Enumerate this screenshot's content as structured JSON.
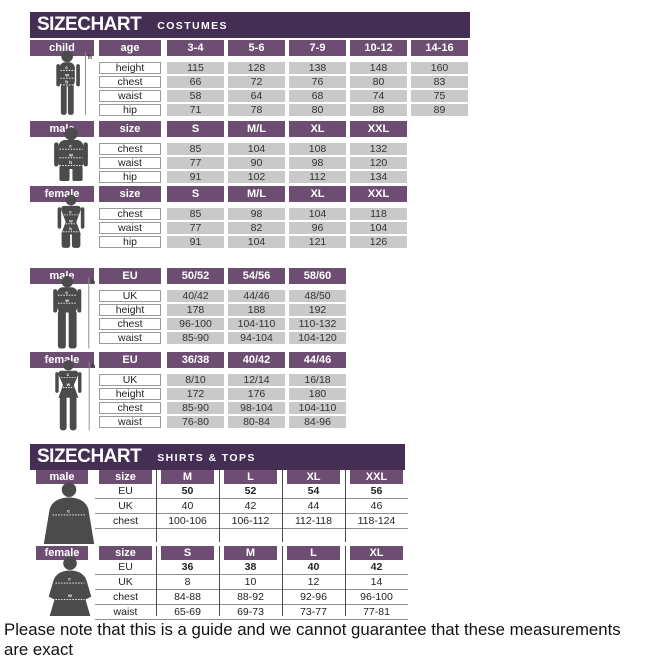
{
  "colors": {
    "banner": "#452e53",
    "pill": "#6d4e72",
    "cell_gray": "#c9c9c9",
    "silhouette": "#4b4b4b"
  },
  "sections": [
    {
      "title": "SIZECHART",
      "subtitle": "COSTUMES"
    },
    {
      "title": "SIZECHART",
      "subtitle": "SHIRTS & TOPS"
    }
  ],
  "markers": {
    "c": "c",
    "w": "w",
    "h": "h"
  },
  "footer_note": "Please note that this is a guide and we cannot guarantee that these measurements are exact",
  "chart_data": [
    {
      "type": "table",
      "section": "COSTUMES",
      "gender": "child",
      "key_label": "age",
      "columns": [
        "3-4",
        "5-6",
        "7-9",
        "10-12",
        "14-16"
      ],
      "rows": [
        {
          "label": "height",
          "values": [
            "115",
            "128",
            "138",
            "148",
            "160"
          ]
        },
        {
          "label": "chest",
          "values": [
            "66",
            "72",
            "76",
            "80",
            "83"
          ]
        },
        {
          "label": "waist",
          "values": [
            "58",
            "64",
            "68",
            "74",
            "75"
          ]
        },
        {
          "label": "hip",
          "values": [
            "71",
            "78",
            "80",
            "88",
            "89"
          ]
        }
      ]
    },
    {
      "type": "table",
      "section": "COSTUMES",
      "gender": "male",
      "key_label": "size",
      "columns": [
        "S",
        "M/L",
        "XL",
        "XXL"
      ],
      "rows": [
        {
          "label": "chest",
          "values": [
            "85",
            "104",
            "108",
            "132"
          ]
        },
        {
          "label": "waist",
          "values": [
            "77",
            "90",
            "98",
            "120"
          ]
        },
        {
          "label": "hip",
          "values": [
            "91",
            "102",
            "112",
            "134"
          ]
        }
      ]
    },
    {
      "type": "table",
      "section": "COSTUMES",
      "gender": "female",
      "key_label": "size",
      "columns": [
        "S",
        "M/L",
        "XL",
        "XXL"
      ],
      "rows": [
        {
          "label": "chest",
          "values": [
            "85",
            "98",
            "104",
            "118"
          ]
        },
        {
          "label": "waist",
          "values": [
            "77",
            "82",
            "96",
            "104"
          ]
        },
        {
          "label": "hip",
          "values": [
            "91",
            "104",
            "121",
            "126"
          ]
        }
      ]
    },
    {
      "type": "table",
      "section": "COSTUMES",
      "gender": "male",
      "key_label": "EU",
      "columns": [
        "50/52",
        "54/56",
        "58/60"
      ],
      "rows": [
        {
          "label": "UK",
          "values": [
            "40/42",
            "44/46",
            "48/50"
          ]
        },
        {
          "label": "height",
          "values": [
            "178",
            "188",
            "192"
          ]
        },
        {
          "label": "chest",
          "values": [
            "96-100",
            "104-110",
            "110-132"
          ]
        },
        {
          "label": "waist",
          "values": [
            "85-90",
            "94-104",
            "104-120"
          ]
        }
      ]
    },
    {
      "type": "table",
      "section": "COSTUMES",
      "gender": "female",
      "key_label": "EU",
      "columns": [
        "36/38",
        "40/42",
        "44/46"
      ],
      "rows": [
        {
          "label": "UK",
          "values": [
            "8/10",
            "12/14",
            "16/18"
          ]
        },
        {
          "label": "height",
          "values": [
            "172",
            "176",
            "180"
          ]
        },
        {
          "label": "chest",
          "values": [
            "85-90",
            "98-104",
            "104-110"
          ]
        },
        {
          "label": "waist",
          "values": [
            "76-80",
            "80-84",
            "84-96"
          ]
        }
      ]
    },
    {
      "type": "table",
      "section": "SHIRTS & TOPS",
      "gender": "male",
      "key_label": "size",
      "columns": [
        "M",
        "L",
        "XL",
        "XXL"
      ],
      "rows": [
        {
          "label": "EU",
          "values": [
            "50",
            "52",
            "54",
            "56"
          ],
          "bold": true
        },
        {
          "label": "UK",
          "values": [
            "40",
            "42",
            "44",
            "46"
          ]
        },
        {
          "label": "chest",
          "values": [
            "100-106",
            "106-112",
            "112-118",
            "118-124"
          ]
        }
      ]
    },
    {
      "type": "table",
      "section": "SHIRTS & TOPS",
      "gender": "female",
      "key_label": "size",
      "columns": [
        "S",
        "M",
        "L",
        "XL"
      ],
      "rows": [
        {
          "label": "EU",
          "values": [
            "36",
            "38",
            "40",
            "42"
          ],
          "bold": true
        },
        {
          "label": "UK",
          "values": [
            "8",
            "10",
            "12",
            "14"
          ]
        },
        {
          "label": "chest",
          "values": [
            "84-88",
            "88-92",
            "92-96",
            "96-100"
          ]
        },
        {
          "label": "waist",
          "values": [
            "65-69",
            "69-73",
            "73-77",
            "77-81"
          ]
        }
      ]
    }
  ]
}
